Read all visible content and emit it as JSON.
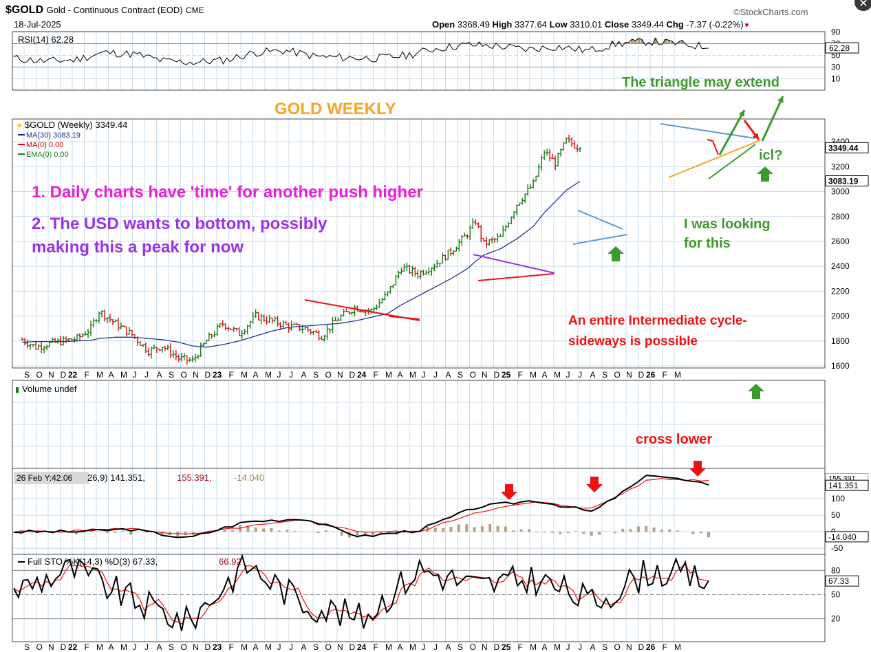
{
  "header": {
    "symbol": "$GOLD",
    "name": "Gold - Continuous Contract (EOD)",
    "exchange": "CME",
    "date": "18-Jul-2025",
    "brand": "©StockCharts.com",
    "open_label": "Open",
    "open": "3368.49",
    "high_label": "High",
    "high": "3377.64",
    "low_label": "Low",
    "low": "3310.01",
    "close_label": "Close",
    "close": "3349.44",
    "chg_label": "Chg",
    "chg": "-7.37 (-0.22%)",
    "chg_arrow": "▼",
    "close_icon": "close-icon"
  },
  "rsi": {
    "label": "RSI(14) 62.28",
    "value_box": "62.28",
    "ticks": [
      "90",
      "70",
      "50",
      "30",
      "10"
    ],
    "current": 62.28
  },
  "price": {
    "legend": [
      "$GOLD (Weekly) 3349.44",
      "MA(30) 3083.19",
      "MA(0) 0.00",
      "EMA(0) 0.00"
    ],
    "legend_colors": [
      "#000000",
      "#1f2a8c",
      "#cc0000",
      "#1a7f1a"
    ],
    "box_close": "3349.44",
    "box_ma": "3083.19",
    "ticks": [
      "3400",
      "3200",
      "3000",
      "2800",
      "2600",
      "2400",
      "2200",
      "2000",
      "1800",
      "1600"
    ]
  },
  "annotations": {
    "gold_weekly": "GOLD WEEKLY",
    "triangle": "The triangle may extend",
    "note1": "1. Daily charts have 'time' for another push higher",
    "note2a": "2. The USD wants to bottom, possibly",
    "note2b": "making this a peak for now",
    "icl": "icl?",
    "looking_a": "I was looking",
    "looking_b": "for this",
    "cycle_a": "An entire Intermediate cycle-",
    "cycle_b": "sideways is possible",
    "cross": "cross lower"
  },
  "axis_labels": [
    "S",
    "O",
    "N",
    "D",
    "22",
    "F",
    "M",
    "A",
    "M",
    "J",
    "J",
    "A",
    "S",
    "O",
    "N",
    "D",
    "23",
    "F",
    "M",
    "A",
    "M",
    "J",
    "J",
    "A",
    "S",
    "O",
    "N",
    "D",
    "24",
    "F",
    "M",
    "A",
    "M",
    "J",
    "J",
    "A",
    "S",
    "O",
    "N",
    "D",
    "25",
    "F",
    "M",
    "A",
    "M",
    "J",
    "J",
    "A",
    "S",
    "O",
    "N",
    "D",
    "26",
    "F",
    "M"
  ],
  "volume": {
    "label": "Volume undef"
  },
  "macd": {
    "label_tip": "26 Feb Y:42.06",
    "label_a": "26,9) 141.351,",
    "label_b": "155.391,",
    "label_c": "-14.040",
    "box_macd": "141.351",
    "box_hist": "-14.040",
    "ticks": [
      "100",
      "50",
      "0",
      "-50"
    ],
    "box_top": "155.391"
  },
  "sto": {
    "label_a": "Full STO %K(14,3) %D(3) 67.33,",
    "label_b": "66.92",
    "box": "67.33",
    "ticks": [
      "80",
      "50",
      "20"
    ]
  },
  "chart_data": [
    {
      "type": "line",
      "title": "RSI(14) 62.28",
      "ylim": [
        0,
        100
      ],
      "x": [
        "S",
        "N",
        "22",
        "M",
        "M",
        "J",
        "S",
        "N",
        "23",
        "M",
        "M",
        "J",
        "S",
        "N",
        "24",
        "M",
        "M",
        "J",
        "S",
        "N",
        "25",
        "M",
        "M",
        "J"
      ],
      "series": [
        {
          "name": "RSI(14)",
          "values": [
            45,
            40,
            42,
            55,
            52,
            40,
            38,
            42,
            55,
            58,
            48,
            46,
            45,
            50,
            62,
            68,
            66,
            60,
            65,
            58,
            70,
            74,
            70,
            64
          ]
        }
      ]
    },
    {
      "type": "line",
      "title": "$GOLD (Weekly) 3349.44",
      "ylim": [
        1550,
        3550
      ],
      "x": [
        "2021-08-27",
        "2021-10-01",
        "2021-11-05",
        "2021-12-10",
        "2022-01-14",
        "2022-02-18",
        "2022-03-11",
        "2022-04-22",
        "2022-06-03",
        "2022-07-15",
        "2022-08-19",
        "2022-09-30",
        "2022-11-04",
        "2022-12-09",
        "2023-01-20",
        "2023-03-03",
        "2023-04-14",
        "2023-05-26",
        "2023-07-07",
        "2023-08-18",
        "2023-09-29",
        "2023-11-10",
        "2023-12-22",
        "2024-02-02",
        "2024-03-15",
        "2024-04-19",
        "2024-05-31",
        "2024-07-12",
        "2024-08-23",
        "2024-10-04",
        "2024-10-25",
        "2024-11-15",
        "2024-12-27",
        "2025-02-07",
        "2025-03-21",
        "2025-04-18",
        "2025-05-16",
        "2025-06-13",
        "2025-07-18"
      ],
      "series": [
        {
          "name": "$GOLD (Weekly)",
          "values": [
            1810,
            1750,
            1780,
            1800,
            1820,
            1900,
            2040,
            1940,
            1850,
            1720,
            1760,
            1660,
            1640,
            1800,
            1940,
            1860,
            2000,
            1960,
            1920,
            1900,
            1840,
            1980,
            2070,
            2040,
            2180,
            2390,
            2340,
            2410,
            2520,
            2660,
            2760,
            2580,
            2630,
            2900,
            3060,
            3320,
            3230,
            3410,
            3349.44
          ]
        },
        {
          "name": "MA(30)",
          "values": [
            1790,
            1795,
            1795,
            1795,
            1800,
            1805,
            1820,
            1830,
            1830,
            1820,
            1810,
            1790,
            1760,
            1750,
            1770,
            1800,
            1840,
            1880,
            1910,
            1920,
            1930,
            1940,
            1960,
            1990,
            2020,
            2090,
            2160,
            2230,
            2300,
            2380,
            2440,
            2490,
            2540,
            2620,
            2720,
            2830,
            2920,
            3010,
            3083.19
          ]
        }
      ]
    },
    {
      "type": "line",
      "title": "MACD",
      "ylim": [
        -60,
        200
      ],
      "x": [
        "S",
        "22",
        "M",
        "S",
        "23",
        "M",
        "S",
        "24",
        "M",
        "S",
        "25",
        "M",
        "J"
      ],
      "series": [
        {
          "name": "MACD",
          "values": [
            0,
            0,
            8,
            -20,
            30,
            40,
            -15,
            5,
            75,
            95,
            60,
            175,
            141.351
          ]
        },
        {
          "name": "Signal",
          "values": [
            0,
            2,
            10,
            -10,
            15,
            35,
            0,
            0,
            60,
            90,
            70,
            160,
            155.391
          ]
        }
      ]
    },
    {
      "type": "line",
      "title": "Full STO %K(14,3) %D(3) 67.33, 66.92",
      "ylim": [
        0,
        100
      ],
      "x": [
        "S",
        "22",
        "M",
        "S",
        "23",
        "M",
        "S",
        "24",
        "M",
        "S",
        "25",
        "M",
        "J"
      ],
      "series": [
        {
          "name": "%K",
          "values": [
            55,
            82,
            45,
            15,
            88,
            40,
            20,
            82,
            60,
            70,
            40,
            80,
            67.33
          ]
        },
        {
          "name": "%D",
          "values": [
            52,
            78,
            48,
            20,
            85,
            45,
            25,
            78,
            62,
            68,
            45,
            78,
            66.92
          ]
        }
      ]
    }
  ],
  "colors": {
    "grid": "#c8dcec",
    "price_bull": "#117a11",
    "price_bear": "#cc1111",
    "ma": "#24338c",
    "rsi_fill": "#a08055",
    "orange": "#f5a623",
    "magenta": "#e81ed6",
    "purple": "#9b30e8",
    "green": "#3b9a2c",
    "red": "#ee1111",
    "blue": "#5b9bd5"
  }
}
